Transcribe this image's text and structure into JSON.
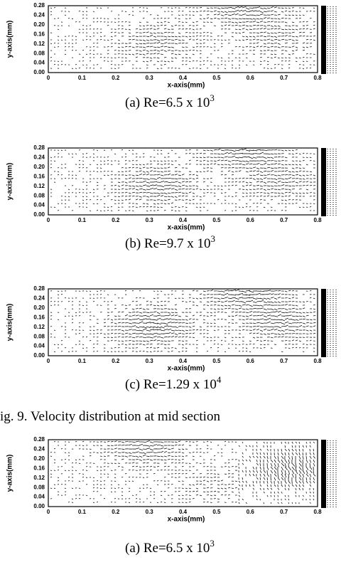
{
  "panels": [
    {
      "yticks": [
        "0.28",
        "0.24",
        "0.20",
        "0.16",
        "0.12",
        "0.08",
        "0.04",
        "0.00"
      ],
      "xticks": [
        "0",
        "0.1",
        "0.2",
        "0.3",
        "0.4",
        "0.5",
        "0.6",
        "0.7",
        "0.8"
      ],
      "y_label": "y-axis(mm)",
      "x_label": "x-axis(mm)",
      "caption": {
        "text": "(a) Re=6.5 x 10",
        "exponent": "3"
      }
    },
    {
      "yticks": [
        "0.28",
        "0.24",
        "0.20",
        "0.16",
        "0.12",
        "0.08",
        "0.04",
        "0.00"
      ],
      "xticks": [
        "0",
        "0.1",
        "0.2",
        "0.3",
        "0.4",
        "0.5",
        "0.6",
        "0.7",
        "0.8"
      ],
      "y_label": "y-axis(mm)",
      "x_label": "x-axis(mm)",
      "caption": {
        "text": "(b) Re=9.7 x 10",
        "exponent": "3"
      }
    },
    {
      "yticks": [
        "0.28",
        "0.24",
        "0.20",
        "0.16",
        "0.12",
        "0.08",
        "0.04",
        "0.00"
      ],
      "xticks": [
        "0",
        "0.1",
        "0.2",
        "0.3",
        "0.4",
        "0.5",
        "0.6",
        "0.7",
        "0.8"
      ],
      "y_label": "y-axis(mm)",
      "x_label": "x-axis(mm)",
      "caption": {
        "text": "(c) Re=1.29 x 10",
        "exponent": "4"
      }
    },
    {
      "yticks": [
        "0.28",
        "0.24",
        "0.20",
        "0.16",
        "0.12",
        "0.08",
        "0.04",
        "0.00"
      ],
      "xticks": [
        "0",
        "0.1",
        "0.2",
        "0.3",
        "0.4",
        "0.5",
        "0.6",
        "0.7",
        "0.8"
      ],
      "y_label": "y-axis(mm)",
      "x_label": "x-axis(mm)",
      "caption": {
        "text": "(a) Re=6.5 x 10",
        "exponent": "3"
      }
    }
  ],
  "figure_caption": "ig. 9. Velocity distribution at mid section"
}
